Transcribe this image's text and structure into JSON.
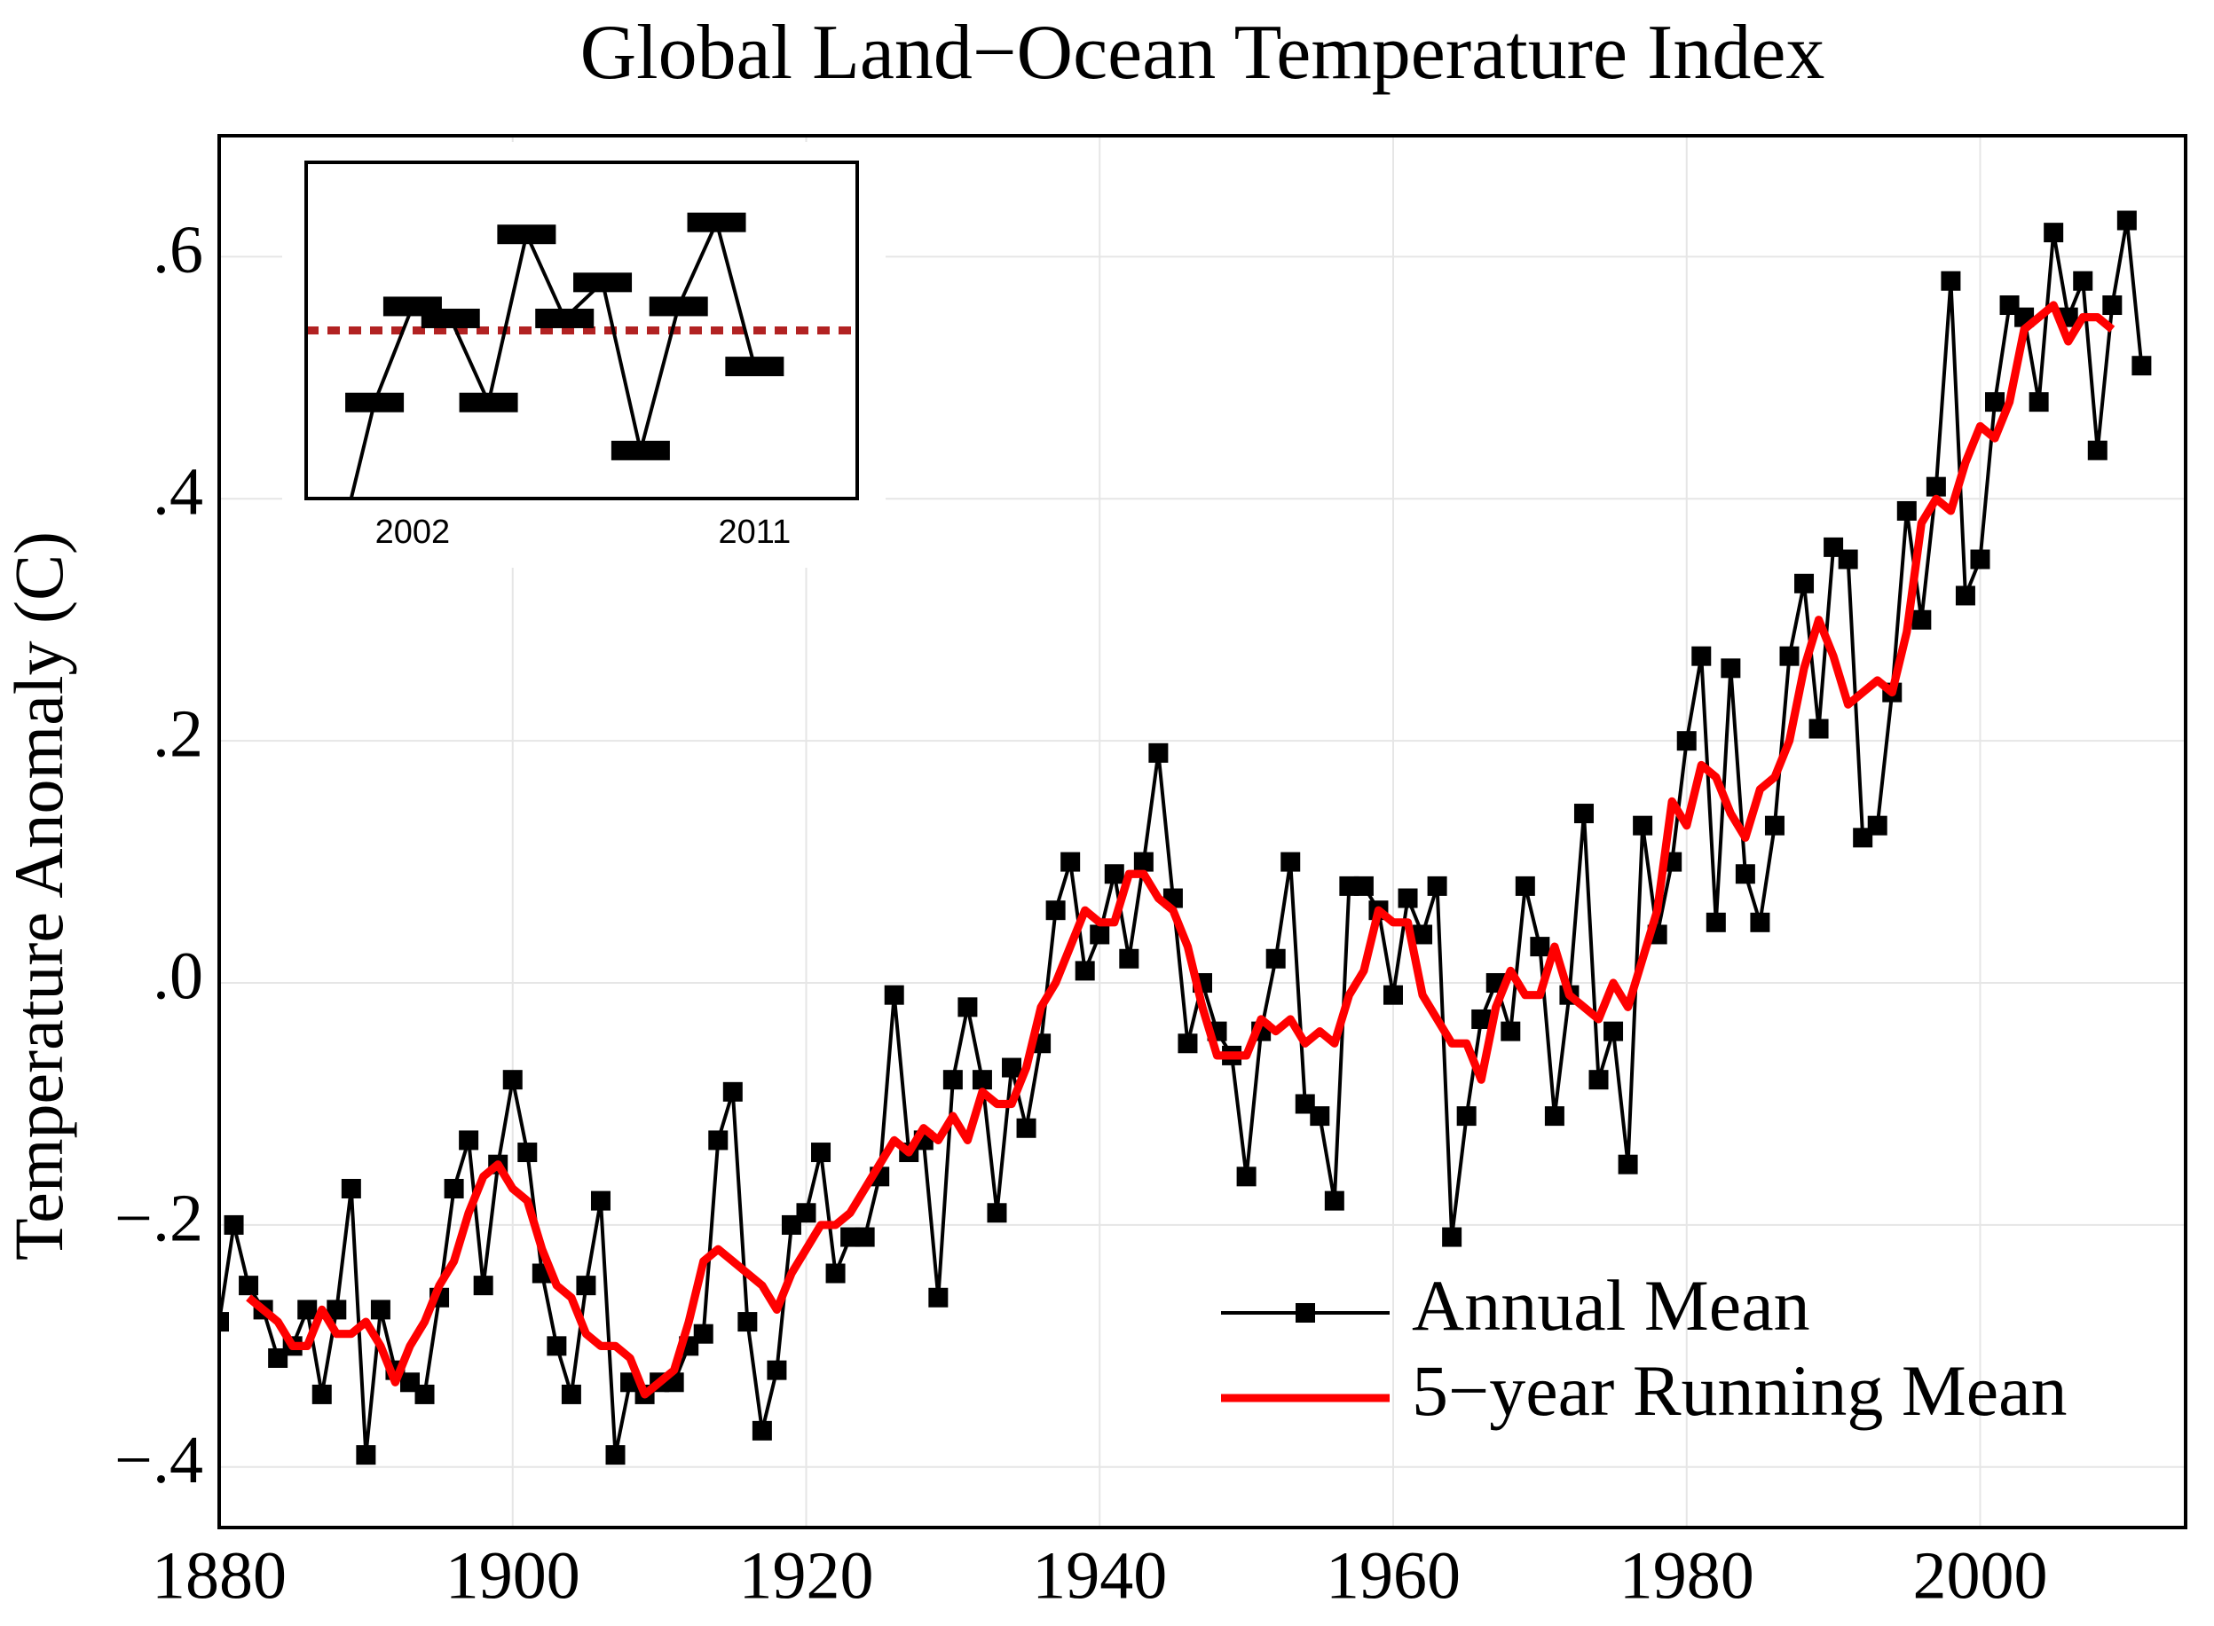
{
  "chart_data": [
    {
      "type": "line",
      "title": "Global Land−Ocean Temperature Index",
      "y_label": "Temperature Anomaly (C)",
      "x": [
        1880,
        1881,
        1882,
        1883,
        1884,
        1885,
        1886,
        1887,
        1888,
        1889,
        1890,
        1891,
        1892,
        1893,
        1894,
        1895,
        1896,
        1897,
        1898,
        1899,
        1900,
        1901,
        1902,
        1903,
        1904,
        1905,
        1906,
        1907,
        1908,
        1909,
        1910,
        1911,
        1912,
        1913,
        1914,
        1915,
        1916,
        1917,
        1918,
        1919,
        1920,
        1921,
        1922,
        1923,
        1924,
        1925,
        1926,
        1927,
        1928,
        1929,
        1930,
        1931,
        1932,
        1933,
        1934,
        1935,
        1936,
        1937,
        1938,
        1939,
        1940,
        1941,
        1942,
        1943,
        1944,
        1945,
        1946,
        1947,
        1948,
        1949,
        1950,
        1951,
        1952,
        1953,
        1954,
        1955,
        1956,
        1957,
        1958,
        1959,
        1960,
        1961,
        1962,
        1963,
        1964,
        1965,
        1966,
        1967,
        1968,
        1969,
        1970,
        1971,
        1972,
        1973,
        1974,
        1975,
        1976,
        1977,
        1978,
        1979,
        1980,
        1981,
        1982,
        1983,
        1984,
        1985,
        1986,
        1987,
        1988,
        1989,
        1990,
        1991,
        1992,
        1993,
        1994,
        1995,
        1996,
        1997,
        1998,
        1999,
        2000,
        2001,
        2002,
        2003,
        2004,
        2005,
        2006,
        2007,
        2008,
        2009,
        2010,
        2011
      ],
      "series": [
        {
          "name": "Annual Mean",
          "color": "#000000",
          "marker": "square",
          "values": [
            -0.28,
            -0.2,
            -0.25,
            -0.27,
            -0.31,
            -0.3,
            -0.27,
            -0.34,
            -0.27,
            -0.17,
            -0.39,
            -0.27,
            -0.32,
            -0.33,
            -0.34,
            -0.26,
            -0.17,
            -0.13,
            -0.25,
            -0.15,
            -0.08,
            -0.14,
            -0.24,
            -0.3,
            -0.34,
            -0.25,
            -0.18,
            -0.39,
            -0.33,
            -0.34,
            -0.33,
            -0.33,
            -0.3,
            -0.29,
            -0.13,
            -0.09,
            -0.28,
            -0.37,
            -0.32,
            -0.2,
            -0.19,
            -0.14,
            -0.24,
            -0.21,
            -0.21,
            -0.16,
            -0.01,
            -0.14,
            -0.13,
            -0.26,
            -0.08,
            -0.02,
            -0.08,
            -0.19,
            -0.07,
            -0.12,
            -0.05,
            0.06,
            0.1,
            0.01,
            0.04,
            0.09,
            0.02,
            0.1,
            0.19,
            0.07,
            -0.05,
            0.0,
            -0.04,
            -0.06,
            -0.16,
            -0.04,
            0.02,
            0.1,
            -0.1,
            -0.11,
            -0.18,
            0.08,
            0.08,
            0.06,
            -0.01,
            0.07,
            0.04,
            0.08,
            -0.21,
            -0.11,
            -0.03,
            0.0,
            -0.04,
            0.08,
            0.03,
            -0.11,
            -0.01,
            0.14,
            -0.08,
            -0.04,
            -0.15,
            0.13,
            0.04,
            0.1,
            0.2,
            0.27,
            0.05,
            0.26,
            0.09,
            0.05,
            0.13,
            0.27,
            0.33,
            0.21,
            0.36,
            0.35,
            0.12,
            0.13,
            0.24,
            0.39,
            0.3,
            0.41,
            0.58,
            0.32,
            0.35,
            0.48,
            0.56,
            0.55,
            0.48,
            0.62,
            0.55,
            0.58,
            0.44,
            0.56,
            0.63,
            0.51
          ]
        },
        {
          "name": "5−year Running Mean",
          "color": "#ff0000",
          "values": [
            null,
            null,
            -0.26,
            -0.27,
            -0.28,
            -0.3,
            -0.3,
            -0.27,
            -0.29,
            -0.29,
            -0.28,
            -0.3,
            -0.33,
            -0.3,
            -0.28,
            -0.25,
            -0.23,
            -0.19,
            -0.16,
            -0.15,
            -0.17,
            -0.18,
            -0.22,
            -0.25,
            -0.26,
            -0.29,
            -0.3,
            -0.3,
            -0.31,
            -0.34,
            -0.33,
            -0.32,
            -0.28,
            -0.23,
            -0.22,
            -0.23,
            -0.24,
            -0.25,
            -0.27,
            -0.24,
            -0.22,
            -0.2,
            -0.2,
            -0.19,
            -0.17,
            -0.15,
            -0.13,
            -0.14,
            -0.12,
            -0.13,
            -0.11,
            -0.13,
            -0.09,
            -0.1,
            -0.1,
            -0.07,
            -0.02,
            0.0,
            0.03,
            0.06,
            0.05,
            0.05,
            0.09,
            0.09,
            0.07,
            0.06,
            0.03,
            -0.02,
            -0.06,
            -0.06,
            -0.06,
            -0.03,
            -0.04,
            -0.03,
            -0.05,
            -0.04,
            -0.05,
            -0.01,
            0.01,
            0.06,
            0.05,
            0.05,
            -0.01,
            -0.03,
            -0.05,
            -0.05,
            -0.08,
            -0.02,
            0.01,
            -0.01,
            -0.01,
            0.03,
            -0.01,
            -0.02,
            -0.03,
            0.0,
            -0.02,
            0.02,
            0.06,
            0.15,
            0.13,
            0.18,
            0.17,
            0.14,
            0.12,
            0.16,
            0.17,
            0.2,
            0.26,
            0.3,
            0.27,
            0.23,
            0.24,
            0.25,
            0.24,
            0.29,
            0.38,
            0.4,
            0.39,
            0.43,
            0.46,
            0.45,
            0.48,
            0.54,
            0.55,
            0.56,
            0.53,
            0.55,
            0.55,
            0.54,
            null,
            null
          ]
        }
      ],
      "xlim": [
        1880,
        2014
      ],
      "ylim": [
        -0.45,
        0.7
      ],
      "xticks": [
        1880,
        1900,
        1920,
        1940,
        1960,
        1980,
        2000
      ],
      "yticks": [
        {
          "value": -0.4,
          "label": "−.4"
        },
        {
          "value": -0.2,
          "label": "−.2"
        },
        {
          "value": 0,
          "label": ".0"
        },
        {
          "value": 0.2,
          "label": ".2"
        },
        {
          "value": 0.4,
          "label": ".4"
        },
        {
          "value": 0.6,
          "label": ".6"
        }
      ],
      "grid": true,
      "legend": "lower right"
    },
    {
      "type": "line",
      "x": [
        2000,
        2001,
        2002,
        2003,
        2004,
        2005,
        2006,
        2007,
        2008,
        2009,
        2010,
        2011
      ],
      "series": [
        {
          "name": "Annual Mean",
          "color": "#000000",
          "marker": "wide-rect",
          "values": [
            0.35,
            0.48,
            0.56,
            0.55,
            0.48,
            0.62,
            0.55,
            0.58,
            0.44,
            0.56,
            0.63,
            0.51
          ]
        }
      ],
      "reference_line": {
        "value": 0.54,
        "color": "#b22222"
      },
      "xlim": [
        1999.2,
        2013.7
      ],
      "ylim": [
        0.4,
        0.68
      ],
      "xticks": [
        2002,
        2011
      ]
    }
  ]
}
